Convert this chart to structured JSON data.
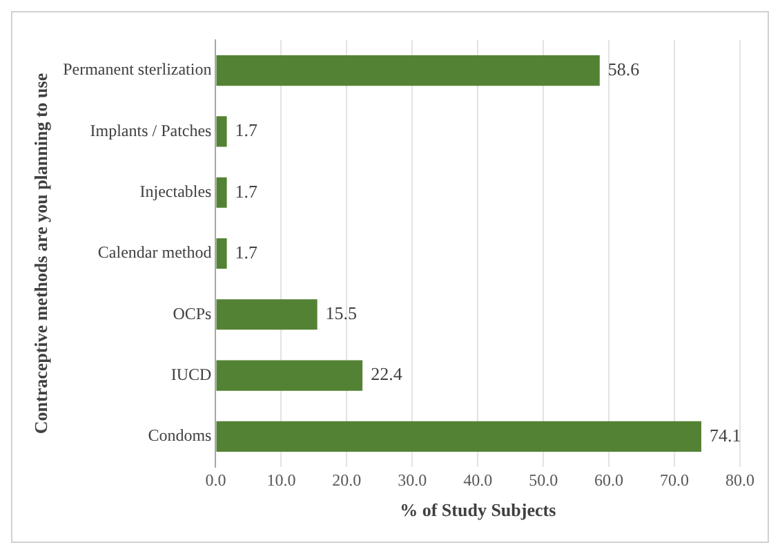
{
  "chart_data": {
    "type": "bar",
    "orientation": "horizontal",
    "xlabel": "% of Study Subjects",
    "ylabel": "Contraceptive methods are you planning to use",
    "categories": [
      "Permanent sterlization",
      "Implants / Patches",
      "Injectables",
      "Calendar method",
      "OCPs",
      "IUCD",
      "Condoms"
    ],
    "values": [
      58.6,
      1.7,
      1.7,
      1.7,
      15.5,
      22.4,
      74.1
    ],
    "color": "#548235",
    "data_labels": true,
    "xlim": [
      0,
      80
    ],
    "xticks": [
      {
        "value": 0,
        "label": "0.0"
      },
      {
        "value": 10,
        "label": "10.0"
      },
      {
        "value": 20,
        "label": "20.0"
      },
      {
        "value": 30,
        "label": "30.0"
      },
      {
        "value": 40,
        "label": "40.0"
      },
      {
        "value": 50,
        "label": "50.0"
      },
      {
        "value": 60,
        "label": "60.0"
      },
      {
        "value": 70,
        "label": "70.0"
      },
      {
        "value": 80,
        "label": "80.0"
      }
    ],
    "grid": "x",
    "legend": false
  }
}
